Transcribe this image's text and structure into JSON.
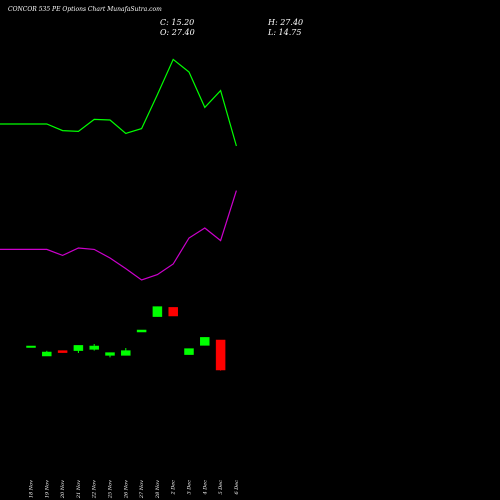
{
  "title": "CONCOR 535 PE Options  Chart MunafaSutra.com",
  "ohlc": {
    "close": "C: 15.20",
    "open": "O: 27.40",
    "high": "H: 27.40",
    "low": "L: 14.75"
  },
  "colors": {
    "background": "#000000",
    "up": "#00ff00",
    "down": "#ff0000",
    "upper_band": "#00ff00",
    "lower_band": "#cc00cc",
    "text": "#ffffff"
  },
  "chart_data": {
    "type": "candlestick",
    "title": "CONCOR 535 PE Options  Chart MunafaSutra.com",
    "x_tick_labels": [
      "18 Nov",
      "19 Nov",
      "20 Nov",
      "21 Nov",
      "22 Nov",
      "25 Nov",
      "26 Nov",
      "27 Nov",
      "28 Nov",
      "2 Dec",
      "3 Dec",
      "4 Dec",
      "5 Dec",
      "6 Dec"
    ],
    "candles": [
      {
        "date": "18 Nov",
        "open": 0.52,
        "close": 0.52,
        "high": 0.52,
        "low": 0.52
      },
      {
        "date": "19 Nov",
        "open": 0.47,
        "close": 0.49,
        "high": 0.496,
        "low": 0.47
      },
      {
        "date": "20 Nov",
        "open": 0.497,
        "close": 0.487,
        "high": 0.497,
        "low": 0.487
      },
      {
        "date": "21 Nov",
        "open": 0.497,
        "close": 0.523,
        "high": 0.523,
        "low": 0.485
      },
      {
        "date": "22 Nov",
        "open": 0.503,
        "close": 0.52,
        "high": 0.53,
        "low": 0.497
      },
      {
        "date": "25 Nov",
        "open": 0.473,
        "close": 0.487,
        "high": 0.487,
        "low": 0.463
      },
      {
        "date": "26 Nov",
        "open": 0.473,
        "close": 0.497,
        "high": 0.51,
        "low": 0.473
      },
      {
        "date": "27 Nov",
        "open": 0.59,
        "close": 0.6,
        "high": 0.6,
        "low": 0.59
      },
      {
        "date": "28 Nov",
        "open": 0.667,
        "close": 0.717,
        "high": 0.717,
        "low": 0.667
      },
      {
        "date": "2 Dec",
        "open": 0.713,
        "close": 0.67,
        "high": 0.713,
        "low": 0.67
      },
      {
        "date": "3 Dec",
        "open": 0.477,
        "close": 0.507,
        "high": 0.507,
        "low": 0.477
      },
      {
        "date": "4 Dec",
        "open": 0.523,
        "close": 0.563,
        "high": 0.563,
        "low": 0.523
      },
      {
        "date": "5 Dec",
        "open": 0.55,
        "close": 0.4,
        "high": 0.55,
        "low": 0.397
      }
    ],
    "upper_band": {
      "color": "#00ff00",
      "x": [
        "18 Nov",
        "19 Nov",
        "20 Nov",
        "21 Nov",
        "22 Nov",
        "25 Nov",
        "26 Nov",
        "27 Nov",
        "28 Nov",
        "2 Dec",
        "3 Dec",
        "4 Dec",
        "5 Dec",
        "6 Dec"
      ],
      "values": [
        1.63,
        1.63,
        1.597,
        1.593,
        1.653,
        1.65,
        1.583,
        1.607,
        1.777,
        1.953,
        1.89,
        1.713,
        1.797,
        1.52
      ]
    },
    "lower_band": {
      "color": "#cc00cc",
      "x": [
        "18 Nov",
        "19 Nov",
        "20 Nov",
        "21 Nov",
        "22 Nov",
        "25 Nov",
        "26 Nov",
        "27 Nov",
        "28 Nov",
        "2 Dec",
        "3 Dec",
        "4 Dec",
        "5 Dec",
        "6 Dec"
      ],
      "values": [
        1.003,
        1.003,
        0.973,
        1.01,
        1.003,
        0.96,
        0.907,
        0.85,
        0.877,
        0.93,
        1.06,
        1.11,
        1.047,
        1.297
      ]
    },
    "grid": false
  }
}
